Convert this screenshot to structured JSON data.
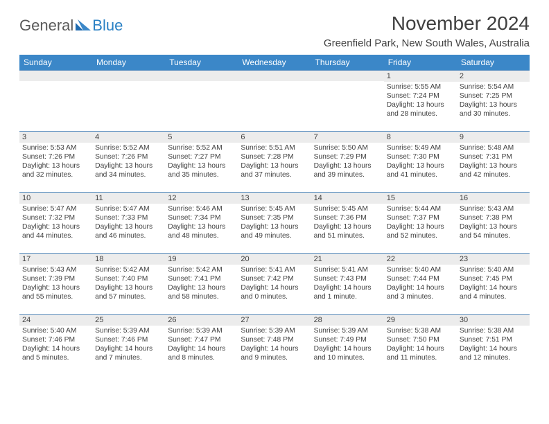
{
  "brand": {
    "word1": "General",
    "word2": "Blue"
  },
  "title": "November 2024",
  "location": "Greenfield Park, New South Wales, Australia",
  "header_bg": "#3b87c8",
  "columns": [
    "Sunday",
    "Monday",
    "Tuesday",
    "Wednesday",
    "Thursday",
    "Friday",
    "Saturday"
  ],
  "weeks": [
    [
      {
        "n": "",
        "sr": "",
        "ss": "",
        "dl": ""
      },
      {
        "n": "",
        "sr": "",
        "ss": "",
        "dl": ""
      },
      {
        "n": "",
        "sr": "",
        "ss": "",
        "dl": ""
      },
      {
        "n": "",
        "sr": "",
        "ss": "",
        "dl": ""
      },
      {
        "n": "",
        "sr": "",
        "ss": "",
        "dl": ""
      },
      {
        "n": "1",
        "sr": "Sunrise: 5:55 AM",
        "ss": "Sunset: 7:24 PM",
        "dl": "Daylight: 13 hours and 28 minutes."
      },
      {
        "n": "2",
        "sr": "Sunrise: 5:54 AM",
        "ss": "Sunset: 7:25 PM",
        "dl": "Daylight: 13 hours and 30 minutes."
      }
    ],
    [
      {
        "n": "3",
        "sr": "Sunrise: 5:53 AM",
        "ss": "Sunset: 7:26 PM",
        "dl": "Daylight: 13 hours and 32 minutes."
      },
      {
        "n": "4",
        "sr": "Sunrise: 5:52 AM",
        "ss": "Sunset: 7:26 PM",
        "dl": "Daylight: 13 hours and 34 minutes."
      },
      {
        "n": "5",
        "sr": "Sunrise: 5:52 AM",
        "ss": "Sunset: 7:27 PM",
        "dl": "Daylight: 13 hours and 35 minutes."
      },
      {
        "n": "6",
        "sr": "Sunrise: 5:51 AM",
        "ss": "Sunset: 7:28 PM",
        "dl": "Daylight: 13 hours and 37 minutes."
      },
      {
        "n": "7",
        "sr": "Sunrise: 5:50 AM",
        "ss": "Sunset: 7:29 PM",
        "dl": "Daylight: 13 hours and 39 minutes."
      },
      {
        "n": "8",
        "sr": "Sunrise: 5:49 AM",
        "ss": "Sunset: 7:30 PM",
        "dl": "Daylight: 13 hours and 41 minutes."
      },
      {
        "n": "9",
        "sr": "Sunrise: 5:48 AM",
        "ss": "Sunset: 7:31 PM",
        "dl": "Daylight: 13 hours and 42 minutes."
      }
    ],
    [
      {
        "n": "10",
        "sr": "Sunrise: 5:47 AM",
        "ss": "Sunset: 7:32 PM",
        "dl": "Daylight: 13 hours and 44 minutes."
      },
      {
        "n": "11",
        "sr": "Sunrise: 5:47 AM",
        "ss": "Sunset: 7:33 PM",
        "dl": "Daylight: 13 hours and 46 minutes."
      },
      {
        "n": "12",
        "sr": "Sunrise: 5:46 AM",
        "ss": "Sunset: 7:34 PM",
        "dl": "Daylight: 13 hours and 48 minutes."
      },
      {
        "n": "13",
        "sr": "Sunrise: 5:45 AM",
        "ss": "Sunset: 7:35 PM",
        "dl": "Daylight: 13 hours and 49 minutes."
      },
      {
        "n": "14",
        "sr": "Sunrise: 5:45 AM",
        "ss": "Sunset: 7:36 PM",
        "dl": "Daylight: 13 hours and 51 minutes."
      },
      {
        "n": "15",
        "sr": "Sunrise: 5:44 AM",
        "ss": "Sunset: 7:37 PM",
        "dl": "Daylight: 13 hours and 52 minutes."
      },
      {
        "n": "16",
        "sr": "Sunrise: 5:43 AM",
        "ss": "Sunset: 7:38 PM",
        "dl": "Daylight: 13 hours and 54 minutes."
      }
    ],
    [
      {
        "n": "17",
        "sr": "Sunrise: 5:43 AM",
        "ss": "Sunset: 7:39 PM",
        "dl": "Daylight: 13 hours and 55 minutes."
      },
      {
        "n": "18",
        "sr": "Sunrise: 5:42 AM",
        "ss": "Sunset: 7:40 PM",
        "dl": "Daylight: 13 hours and 57 minutes."
      },
      {
        "n": "19",
        "sr": "Sunrise: 5:42 AM",
        "ss": "Sunset: 7:41 PM",
        "dl": "Daylight: 13 hours and 58 minutes."
      },
      {
        "n": "20",
        "sr": "Sunrise: 5:41 AM",
        "ss": "Sunset: 7:42 PM",
        "dl": "Daylight: 14 hours and 0 minutes."
      },
      {
        "n": "21",
        "sr": "Sunrise: 5:41 AM",
        "ss": "Sunset: 7:43 PM",
        "dl": "Daylight: 14 hours and 1 minute."
      },
      {
        "n": "22",
        "sr": "Sunrise: 5:40 AM",
        "ss": "Sunset: 7:44 PM",
        "dl": "Daylight: 14 hours and 3 minutes."
      },
      {
        "n": "23",
        "sr": "Sunrise: 5:40 AM",
        "ss": "Sunset: 7:45 PM",
        "dl": "Daylight: 14 hours and 4 minutes."
      }
    ],
    [
      {
        "n": "24",
        "sr": "Sunrise: 5:40 AM",
        "ss": "Sunset: 7:46 PM",
        "dl": "Daylight: 14 hours and 5 minutes."
      },
      {
        "n": "25",
        "sr": "Sunrise: 5:39 AM",
        "ss": "Sunset: 7:46 PM",
        "dl": "Daylight: 14 hours and 7 minutes."
      },
      {
        "n": "26",
        "sr": "Sunrise: 5:39 AM",
        "ss": "Sunset: 7:47 PM",
        "dl": "Daylight: 14 hours and 8 minutes."
      },
      {
        "n": "27",
        "sr": "Sunrise: 5:39 AM",
        "ss": "Sunset: 7:48 PM",
        "dl": "Daylight: 14 hours and 9 minutes."
      },
      {
        "n": "28",
        "sr": "Sunrise: 5:39 AM",
        "ss": "Sunset: 7:49 PM",
        "dl": "Daylight: 14 hours and 10 minutes."
      },
      {
        "n": "29",
        "sr": "Sunrise: 5:38 AM",
        "ss": "Sunset: 7:50 PM",
        "dl": "Daylight: 14 hours and 11 minutes."
      },
      {
        "n": "30",
        "sr": "Sunrise: 5:38 AM",
        "ss": "Sunset: 7:51 PM",
        "dl": "Daylight: 14 hours and 12 minutes."
      }
    ]
  ]
}
